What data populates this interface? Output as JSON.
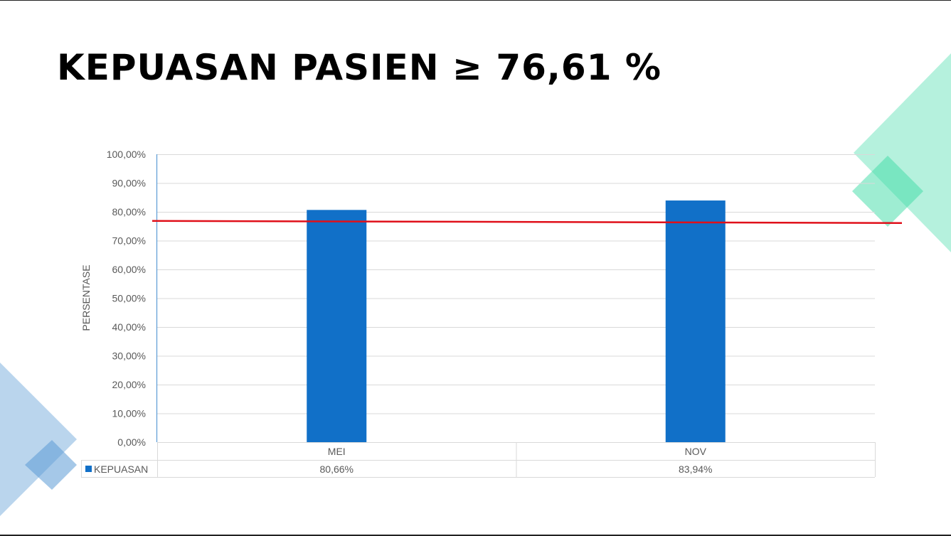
{
  "title": "KEPUASAN PASIEN  ≥  76,61 %",
  "colors": {
    "bar": "#1170c8",
    "target_line": "#e0101a",
    "deco_teal": "#3ddba6",
    "deco_blue": "#5b9bd5"
  },
  "chart_data": {
    "type": "bar",
    "categories": [
      "MEI",
      "NOV"
    ],
    "series": [
      {
        "name": "KEPUASAN",
        "values": [
          80.66,
          83.94
        ],
        "labels": [
          "80,66%",
          "83,94%"
        ]
      }
    ],
    "target": 76.61,
    "ylabel": "PERSENTASE",
    "ylim": [
      0,
      100
    ],
    "yticks": [
      "0,00%",
      "10,00%",
      "20,00%",
      "30,00%",
      "40,00%",
      "50,00%",
      "60,00%",
      "70,00%",
      "80,00%",
      "90,00%",
      "100,00%"
    ],
    "grid": true,
    "legend": "data-table"
  }
}
